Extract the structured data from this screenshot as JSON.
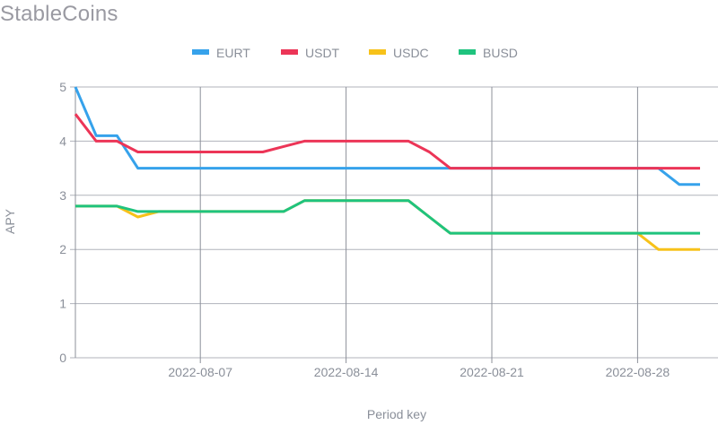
{
  "chart_data": {
    "type": "line",
    "title": "StableCoins",
    "xlabel": "Period key",
    "ylabel": "APY",
    "ylim": [
      0,
      5
    ],
    "yticks": [
      0,
      1,
      2,
      3,
      4,
      5
    ],
    "xticks": [
      "2022-08-07",
      "2022-08-14",
      "2022-08-21",
      "2022-08-28"
    ],
    "grid": true,
    "legend_position": "top",
    "x": [
      "2022-08-01",
      "2022-08-02",
      "2022-08-03",
      "2022-08-04",
      "2022-08-05",
      "2022-08-06",
      "2022-08-07",
      "2022-08-08",
      "2022-08-09",
      "2022-08-10",
      "2022-08-11",
      "2022-08-12",
      "2022-08-13",
      "2022-08-14",
      "2022-08-15",
      "2022-08-16",
      "2022-08-17",
      "2022-08-18",
      "2022-08-19",
      "2022-08-20",
      "2022-08-21",
      "2022-08-22",
      "2022-08-23",
      "2022-08-24",
      "2022-08-25",
      "2022-08-26",
      "2022-08-27",
      "2022-08-28",
      "2022-08-29",
      "2022-08-30",
      "2022-08-31"
    ],
    "series": [
      {
        "name": "EURT",
        "color": "#36a2eb",
        "values": [
          5.0,
          4.1,
          4.1,
          3.5,
          3.5,
          3.5,
          3.5,
          3.5,
          3.5,
          3.5,
          3.5,
          3.5,
          3.5,
          3.5,
          3.5,
          3.5,
          3.5,
          3.5,
          3.5,
          3.5,
          3.5,
          3.5,
          3.5,
          3.5,
          3.5,
          3.5,
          3.5,
          3.5,
          3.5,
          3.2,
          3.2
        ]
      },
      {
        "name": "USDT",
        "color": "#ec3557",
        "values": [
          4.5,
          4.0,
          4.0,
          3.8,
          3.8,
          3.8,
          3.8,
          3.8,
          3.8,
          3.8,
          3.9,
          4.0,
          4.0,
          4.0,
          4.0,
          4.0,
          4.0,
          3.8,
          3.5,
          3.5,
          3.5,
          3.5,
          3.5,
          3.5,
          3.5,
          3.5,
          3.5,
          3.5,
          3.5,
          3.5,
          3.5
        ]
      },
      {
        "name": "USDC",
        "color": "#f7c21a",
        "values": [
          2.8,
          2.8,
          2.8,
          2.6,
          2.7,
          2.7,
          2.7,
          2.7,
          2.7,
          2.7,
          2.7,
          2.9,
          2.9,
          2.9,
          2.9,
          2.9,
          2.9,
          2.6,
          2.3,
          2.3,
          2.3,
          2.3,
          2.3,
          2.3,
          2.3,
          2.3,
          2.3,
          2.3,
          2.0,
          2.0,
          2.0
        ]
      },
      {
        "name": "BUSD",
        "color": "#1fc37e",
        "values": [
          2.8,
          2.8,
          2.8,
          2.7,
          2.7,
          2.7,
          2.7,
          2.7,
          2.7,
          2.7,
          2.7,
          2.9,
          2.9,
          2.9,
          2.9,
          2.9,
          2.9,
          2.6,
          2.3,
          2.3,
          2.3,
          2.3,
          2.3,
          2.3,
          2.3,
          2.3,
          2.3,
          2.3,
          2.3,
          2.3,
          2.3
        ]
      }
    ]
  }
}
